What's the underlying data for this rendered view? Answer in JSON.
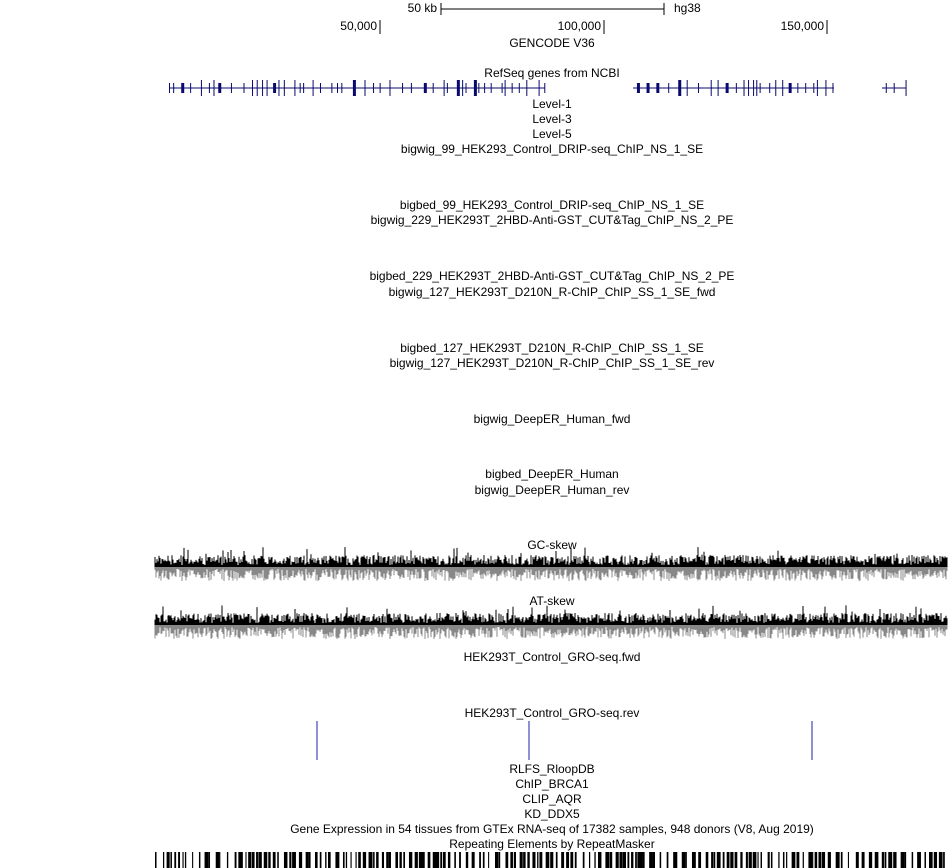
{
  "scale_bar": {
    "size": "50 kb",
    "assembly": "hg38"
  },
  "ruler": [
    "50,000",
    "100,000",
    "150,000"
  ],
  "tracks": [
    {
      "label": "GENCODE V36"
    },
    {
      "label": "RefSeq genes from NCBI"
    },
    {
      "label": "Level-1"
    },
    {
      "label": "Level-3"
    },
    {
      "label": "Level-5"
    },
    {
      "label": "bigwig_99_HEK293_Control_DRIP-seq_ChIP_NS_1_SE"
    },
    {
      "label": "bigbed_99_HEK293_Control_DRIP-seq_ChIP_NS_1_SE"
    },
    {
      "label": "bigwig_229_HEK293T_2HBD-Anti-GST_CUT&Tag_ChIP_NS_2_PE"
    },
    {
      "label": "bigbed_229_HEK293T_2HBD-Anti-GST_CUT&Tag_ChIP_NS_2_PE"
    },
    {
      "label": "bigwig_127_HEK293T_D210N_R-ChIP_ChIP_SS_1_SE_fwd",
      "color": "#cc2020"
    },
    {
      "label": "bigbed_127_HEK293T_D210N_R-ChIP_ChIP_SS_1_SE"
    },
    {
      "label": "bigwig_127_HEK293T_D210N_R-ChIP_ChIP_SS_1_SE_rev",
      "color": "#2020aa"
    },
    {
      "label": "bigwig_DeepER_Human_fwd",
      "color": "#cc2020"
    },
    {
      "label": "bigbed_DeepER_Human"
    },
    {
      "label": "bigwig_DeepER_Human_rev",
      "color": "#2020aa"
    },
    {
      "label": "GC-skew"
    },
    {
      "label": "AT-skew"
    },
    {
      "label": "HEK293T_Control_GRO-seq.fwd",
      "color": "#cc2020"
    },
    {
      "label": "HEK293T_Control_GRO-seq.rev",
      "color": "#2020aa"
    },
    {
      "label": "RLFS_RloopDB"
    },
    {
      "label": "ChIP_BRCA1"
    },
    {
      "label": "CLIP_AQR"
    },
    {
      "label": "KD_DDX5"
    },
    {
      "label": "Gene Expression in 54 tissues from GTEx RNA-seq of 17382 samples, 948 donors (V8, Aug 2019)"
    },
    {
      "label": "Repeating Elements by RepeatMasker"
    }
  ]
}
